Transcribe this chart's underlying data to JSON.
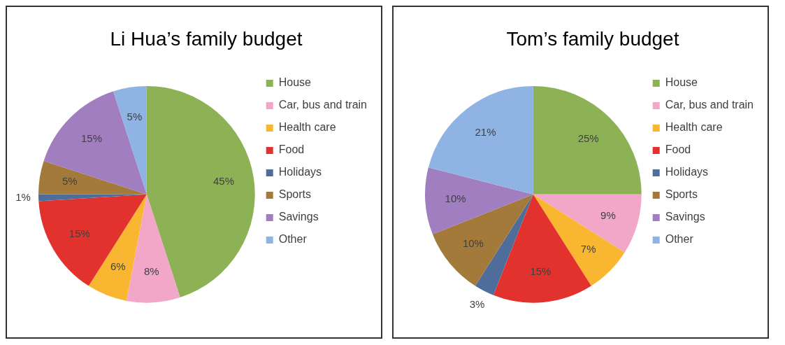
{
  "chart_data": [
    {
      "type": "pie",
      "title": "Li Hua’s family budget",
      "categories": [
        "House",
        "Car, bus and train",
        "Health care",
        "Food",
        "Holidays",
        "Sports",
        "Savings",
        "Other"
      ],
      "values": [
        45,
        8,
        6,
        15,
        1,
        5,
        15,
        5
      ],
      "colors": [
        "#8db255",
        "#f2a7c9",
        "#f9b731",
        "#e2322e",
        "#4f6d9a",
        "#a47a3a",
        "#a17ec0",
        "#8fb4e3"
      ],
      "value_labels": [
        "45%",
        "8%",
        "6%",
        "15%",
        "1%",
        "5%",
        "15%",
        "5%"
      ],
      "legend": "right"
    },
    {
      "type": "pie",
      "title": "Tom’s family budget",
      "categories": [
        "House",
        "Car, bus and train",
        "Health care",
        "Food",
        "Holidays",
        "Sports",
        "Savings",
        "Other"
      ],
      "values": [
        25,
        9,
        7,
        15,
        3,
        10,
        10,
        21
      ],
      "colors": [
        "#8db255",
        "#f2a7c9",
        "#f9b731",
        "#e2322e",
        "#4f6d9a",
        "#a47a3a",
        "#a17ec0",
        "#8fb4e3"
      ],
      "value_labels": [
        "25%",
        "9%",
        "7%",
        "15%",
        "3%",
        "10%",
        "10%",
        "21%"
      ],
      "legend": "right"
    }
  ]
}
